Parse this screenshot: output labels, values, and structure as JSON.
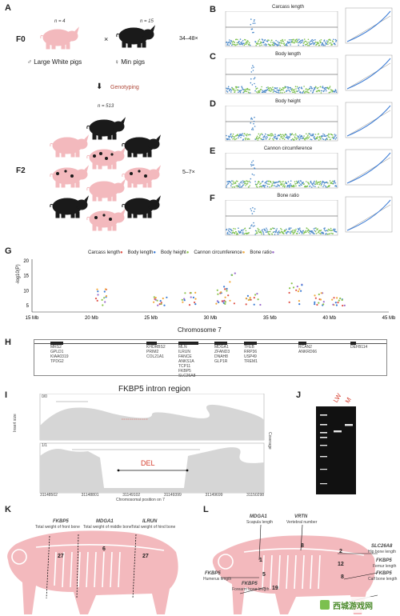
{
  "panelA": {
    "label": "A",
    "f0": "F0",
    "f2": "F2",
    "n_lw": "n = 4",
    "n_min": "n = 15",
    "times": "×",
    "lw_label": "♂ Large White pigs",
    "min_label": "♀ Min pigs",
    "gen1": "34–48×",
    "genotyping": "Genotyping",
    "n_f2": "n = 513",
    "gen2": "5–7×"
  },
  "gwas": [
    {
      "label": "B",
      "title": "Carcass length"
    },
    {
      "label": "C",
      "title": "Body length"
    },
    {
      "label": "D",
      "title": "Body height"
    },
    {
      "label": "E",
      "title": "Cannon circumference"
    },
    {
      "label": "F",
      "title": "Bone ratio"
    }
  ],
  "panelG": {
    "label": "G",
    "ylabel": "-log10(P)",
    "xtitle": "Chromosome 7",
    "legend": [
      {
        "name": "Carcass length",
        "color": "#e0544a"
      },
      {
        "name": "Body length",
        "color": "#3a7bd5"
      },
      {
        "name": "Body height",
        "color": "#8bc34a"
      },
      {
        "name": "Cannon circumference",
        "color": "#f2a93b"
      },
      {
        "name": "Bone ratio",
        "color": "#9b6bcc"
      }
    ],
    "yticks": [
      "20",
      "15",
      "10",
      "5"
    ],
    "xticks": [
      "15 Mb",
      "20 Mb",
      "25 Mb",
      "30 Mb",
      "35 Mb",
      "40 Mb",
      "45 Mb"
    ]
  },
  "panelH": {
    "label": "H",
    "genes": [
      [
        "MRS2",
        "GPLD1",
        "KIAA0319",
        "TPDG2"
      ],
      [
        "KHDRBS2",
        "PRIM2",
        "COL21A1"
      ],
      [
        "MLN",
        "ILRUN",
        "FANCE",
        "ANKS1A",
        "TCP11",
        "FKBP5",
        "SLC26A8"
      ],
      [
        "MDGA1",
        "ZFAND3",
        "DNAH8",
        "GLP1R"
      ],
      [
        "TFEB",
        "RRP36",
        "USP49",
        "TREM1"
      ],
      [
        "RCAN2",
        "ANKRD66"
      ],
      [
        "DEFB114"
      ]
    ]
  },
  "panelI": {
    "label": "I",
    "title": "FKBP5 intron region",
    "sample1": "0/0",
    "sample2": "1/1",
    "del": "DEL",
    "ylabel_left": "Insert size",
    "ylabel_right": "Coverage",
    "xlabel": "Chromosomal position on 7",
    "xticks": [
      "31148502",
      "31148801",
      "31149102",
      "31149399",
      "31149699",
      "31150298"
    ]
  },
  "panelJ": {
    "label": "J",
    "lane1": "LW",
    "lane2": "M"
  },
  "panelK": {
    "label": "K",
    "genes": [
      {
        "name": "FKBP5",
        "desc": "Total weight of front bone"
      },
      {
        "name": "MDGA1",
        "desc": "Total weight of middle bone"
      },
      {
        "name": "ILRUN",
        "desc": "Total weight of hind bone"
      }
    ],
    "nums": [
      "27",
      "6",
      "27"
    ]
  },
  "panelL": {
    "label": "L",
    "genes": [
      {
        "name": "MDGA1",
        "desc": "Scapula length"
      },
      {
        "name": "VRTN",
        "desc": "Vertebral number"
      },
      {
        "name": "SLC26A8",
        "desc": "Hip bone length"
      },
      {
        "name": "FKBP5",
        "desc": "Femur length"
      },
      {
        "name": "FKBP5",
        "desc": "Calf bone length"
      },
      {
        "name": "FKBP5",
        "desc": "Humerus length"
      },
      {
        "name": "FKBP5",
        "desc": "Forearm bone length"
      }
    ],
    "nums": [
      "8",
      "2",
      "12",
      "8",
      "1",
      "5",
      "19"
    ]
  },
  "watermark": "西城游戏网",
  "colors": {
    "pink": "#f3b9bd",
    "black": "#1a1a1a",
    "manhattan_blue": "#4a88c8",
    "manhattan_green": "#7cc04f",
    "accent_red": "#d63f2f"
  }
}
